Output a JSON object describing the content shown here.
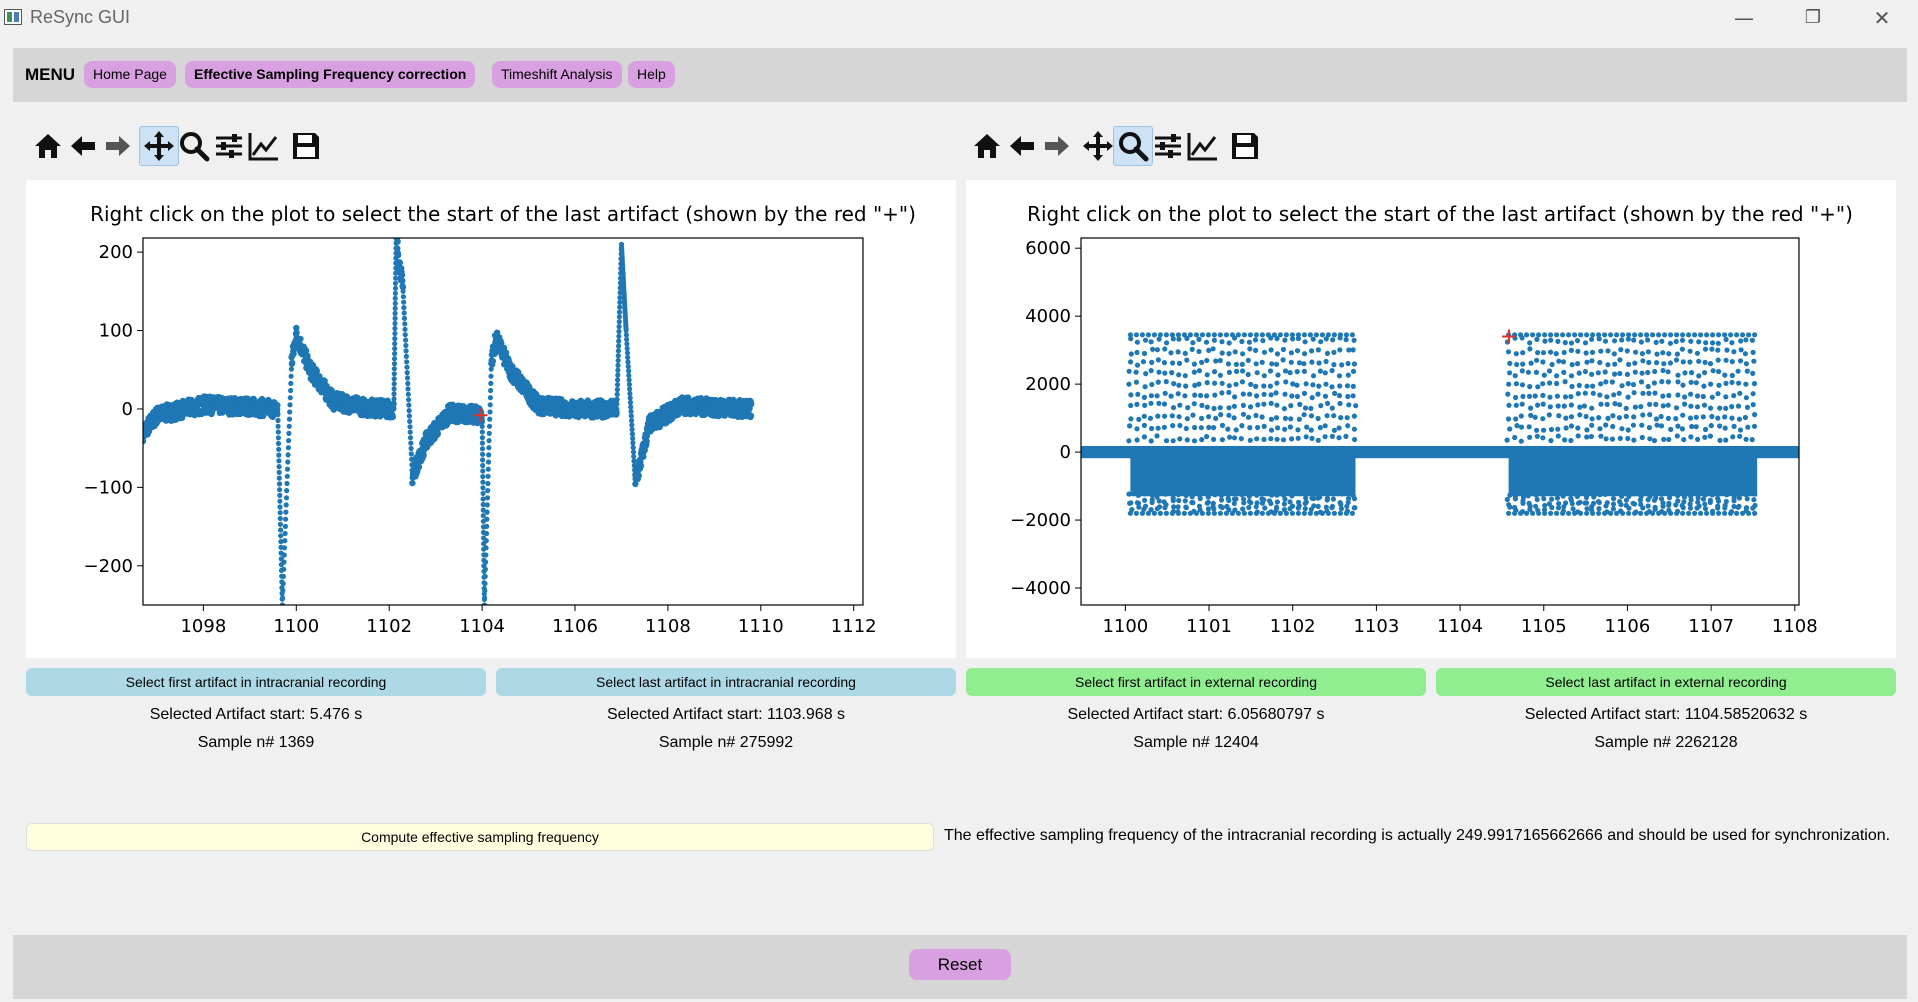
{
  "window": {
    "title": "ReSync GUI",
    "minimize": "—",
    "restore": "❐",
    "close": "✕"
  },
  "menu": {
    "label": "MENU",
    "items": [
      "Home Page",
      "Effective Sampling Frequency correction",
      "Timeshift Analysis",
      "Help"
    ],
    "active_index": 1
  },
  "toolbars": {
    "left": {
      "active_tool": "pan"
    },
    "right": {
      "active_tool": "zoom"
    },
    "tools": [
      "home",
      "back",
      "forward",
      "pan",
      "zoom",
      "configure-subplots",
      "edit-axis",
      "save"
    ]
  },
  "colors": {
    "series": "#1f77b4",
    "marker": "#e0302a",
    "blue_button": "#add8e6",
    "green_button": "#90ee90",
    "menu_button": "#d8a0e0",
    "compute_button": "#ffffe0"
  },
  "chart_data": [
    {
      "type": "scatter",
      "title": "Right click on the plot to select the start of the last artifact (shown by the red \"+\")",
      "xlim": [
        1096.7,
        1112.2
      ],
      "ylim": [
        -250,
        218
      ],
      "xticks": [
        1098,
        1100,
        1102,
        1104,
        1106,
        1108,
        1110,
        1112
      ],
      "yticks": [
        -200,
        -100,
        0,
        100,
        200
      ],
      "series": [
        {
          "marker": "dot",
          "description_points": [
            [
              1096.7,
              -30
            ],
            [
              1097.0,
              -8
            ],
            [
              1098,
              5
            ],
            [
              1099,
              3
            ],
            [
              1099.6,
              0
            ],
            [
              1099.7,
              -250
            ],
            [
              1099.9,
              60
            ],
            [
              1100.0,
              95
            ],
            [
              1100.3,
              50
            ],
            [
              1100.8,
              10
            ],
            [
              1101.5,
              2
            ],
            [
              1102.1,
              0
            ],
            [
              1102.15,
              218
            ],
            [
              1102.3,
              150
            ],
            [
              1102.5,
              -85
            ],
            [
              1102.8,
              -40
            ],
            [
              1103.3,
              -5
            ],
            [
              1104.0,
              -8
            ],
            [
              1104.05,
              -250
            ],
            [
              1104.2,
              60
            ],
            [
              1104.3,
              90
            ],
            [
              1104.6,
              50
            ],
            [
              1105.2,
              5
            ],
            [
              1106.0,
              0
            ],
            [
              1106.9,
              0
            ],
            [
              1107.0,
              210
            ],
            [
              1107.1,
              100
            ],
            [
              1107.3,
              -95
            ],
            [
              1107.6,
              -20
            ],
            [
              1108.3,
              5
            ],
            [
              1109,
              2
            ],
            [
              1109.8,
              0
            ]
          ]
        }
      ],
      "marker_point": {
        "x": 1103.968,
        "y": -8,
        "symbol": "+"
      }
    },
    {
      "type": "scatter",
      "title": "Right click on the plot to select the start of the last artifact (shown by the red \"+\")",
      "xlim": [
        1099.47,
        1108.05
      ],
      "ylim": [
        -4500,
        6300
      ],
      "xticks": [
        1100,
        1101,
        1102,
        1103,
        1104,
        1105,
        1106,
        1107,
        1108
      ],
      "yticks": [
        -4000,
        -2000,
        0,
        2000,
        4000,
        6000
      ],
      "series": [
        {
          "marker": "dot",
          "baseline": 0,
          "bursts": [
            {
              "x_start": 1100.06,
              "x_end": 1102.75,
              "y_min": -1800,
              "y_max": 3450
            },
            {
              "x_start": 1104.58,
              "x_end": 1107.55,
              "y_min": -1800,
              "y_max": 3450
            }
          ]
        }
      ],
      "marker_point": {
        "x": 1104.5852,
        "y": 3400,
        "symbol": "+"
      }
    }
  ],
  "artifact_selection": [
    {
      "button": "Select first artifact in intracranial recording",
      "start": "Selected Artifact start: 5.476 s",
      "sample": "Sample n# 1369"
    },
    {
      "button": "Select last artifact in intracranial recording",
      "start": "Selected Artifact start: 1103.968 s",
      "sample": "Sample n# 275992"
    },
    {
      "button": "Select first artifact in external recording",
      "start": "Selected Artifact start: 6.05680797 s",
      "sample": "Sample n# 12404"
    },
    {
      "button": "Select last artifact in external recording",
      "start": "Selected Artifact start: 1104.58520632 s",
      "sample": "Sample n# 2262128"
    }
  ],
  "compute": {
    "button": "Compute effective sampling frequency",
    "result": "The effective sampling frequency of the intracranial recording is actually 249.9917165662666 and should be used for synchronization."
  },
  "reset": "Reset"
}
